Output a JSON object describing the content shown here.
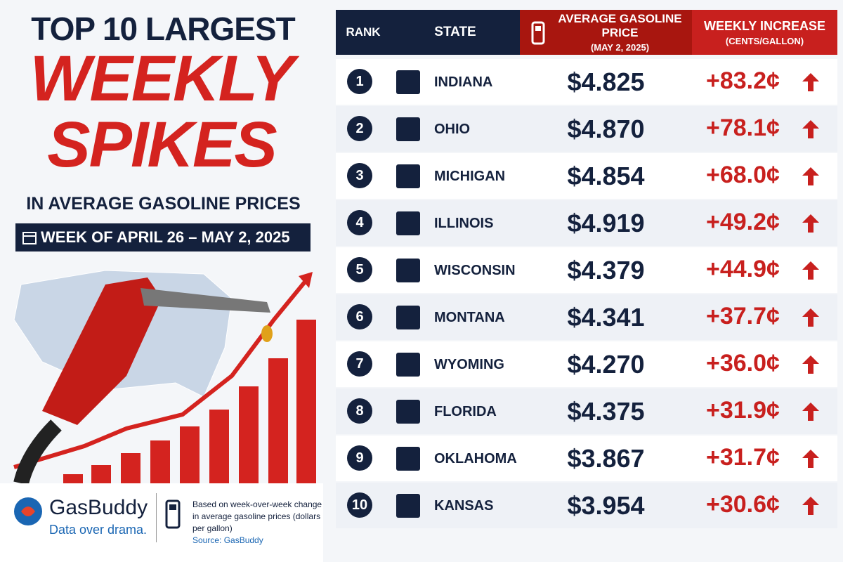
{
  "header": {
    "title_line1": "TOP 10 LARGEST",
    "title_line2": "WEEKLY",
    "title_line3": "SPIKES",
    "subtitle": "IN AVERAGE GASOLINE PRICES",
    "week": "WEEK OF APRIL 26 – MAY 2, 2025"
  },
  "table": {
    "columns": {
      "rank": "RANK",
      "state": "STATE",
      "price": "AVERAGE GASOLINE PRICE",
      "price_sub": "(MAY 2, 2025)",
      "increase": "WEEKLY INCREASE",
      "increase_sub": "(CENTS/GALLON)"
    },
    "rows": [
      [
        "1",
        "INDIANA",
        "$4.825",
        "+83.2¢"
      ],
      [
        "2",
        "OHIO",
        "$4.870",
        "+78.1¢"
      ],
      [
        "3",
        "MICHIGAN",
        "$4.854",
        "+68.0¢"
      ],
      [
        "4",
        "ILLINOIS",
        "$4.919",
        "+49.2¢"
      ],
      [
        "5",
        "WISCONSIN",
        "$4.379",
        "+44.9¢"
      ],
      [
        "6",
        "MONTANA",
        "$4.341",
        "+37.7¢"
      ],
      [
        "7",
        "WYOMING",
        "$4.270",
        "+36.0¢"
      ],
      [
        "8",
        "FLORIDA",
        "$4.375",
        "+31.9¢"
      ],
      [
        "9",
        "OKLAHOMA",
        "$3.867",
        "+31.7¢"
      ],
      [
        "10",
        "KANSAS",
        "$3.954",
        "+30.6¢"
      ]
    ]
  },
  "footer": {
    "brand": "GasBuddy",
    "tagline": "Data over drama.",
    "note_line1": "Based on week-over-week change",
    "note_line2": "in average gasoline prices (dollars per gallon)",
    "source": "Source: GasBuddy"
  }
}
